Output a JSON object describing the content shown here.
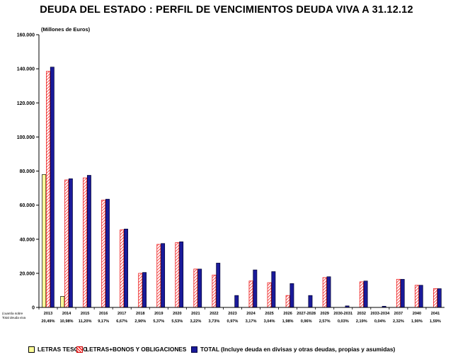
{
  "title": "DEUDA DEL ESTADO : PERFIL DE VENCIMIENTOS DEUDA VIVA A 31.12.12",
  "colors": {
    "letras": "#ffff99",
    "bonos_stroke": "#ee2222",
    "total": "#1a1a9a"
  },
  "chart_data": {
    "type": "bar",
    "title": "DEUDA DEL ESTADO : PERFIL DE VENCIMIENTOS DEUDA VIVA A 31.12.12",
    "ylabel": "(Millones de Euros)",
    "ylim": [
      0,
      160000
    ],
    "yticks": [
      0,
      20000,
      40000,
      60000,
      80000,
      100000,
      120000,
      140000,
      160000
    ],
    "ytick_labels": [
      "0",
      "20.000",
      "40.000",
      "60.000",
      "80.000",
      "100.000",
      "120.000",
      "140.000",
      "160.000"
    ],
    "categories": [
      "2013",
      "2014",
      "2015",
      "2016",
      "2017",
      "2018",
      "2019",
      "2020",
      "2021",
      "2022",
      "2023",
      "2024",
      "2025",
      "2026",
      "2027-2028",
      "2029",
      "2030-2031",
      "2032",
      "2033-2034",
      "2037",
      "2040",
      "2041"
    ],
    "series": [
      {
        "name": "LETRAS TESORO",
        "values": [
          78000,
          6500,
          0,
          0,
          0,
          0,
          0,
          0,
          0,
          0,
          0,
          0,
          0,
          0,
          0,
          0,
          0,
          0,
          0,
          0,
          0,
          0
        ]
      },
      {
        "name": "LETRAS+BONOS Y OBLIGACIONES",
        "values": [
          138500,
          74800,
          76000,
          63000,
          45500,
          20000,
          37000,
          38000,
          22500,
          19000,
          0,
          15500,
          14500,
          7000,
          0,
          17500,
          0,
          15000,
          0,
          16500,
          13000,
          11000
        ]
      },
      {
        "name": "TOTAL (Incluye deuda en divisas y otras deudas, propias y asumidas)",
        "values": [
          141000,
          75500,
          77500,
          63500,
          46000,
          20500,
          37500,
          38500,
          22500,
          26000,
          7000,
          22000,
          21000,
          14000,
          7000,
          18000,
          900,
          15500,
          700,
          16500,
          13000,
          11000
        ]
      }
    ],
    "percent_row_label": [
      "(cuantía sobre",
      "Total deuda viva"
    ],
    "percentages": [
      "20,49%",
      "10,98%",
      "11,20%",
      "9,17%",
      "6,67%",
      "2,90%",
      "5,37%",
      "5,53%",
      "3,22%",
      "3,73%",
      "0,97%",
      "3,17%",
      "3,04%",
      "1,98%",
      "0,96%",
      "2,57%",
      "0,03%",
      "2,19%",
      "0,04%",
      "2,32%",
      "1,90%",
      "1,59%"
    ]
  }
}
